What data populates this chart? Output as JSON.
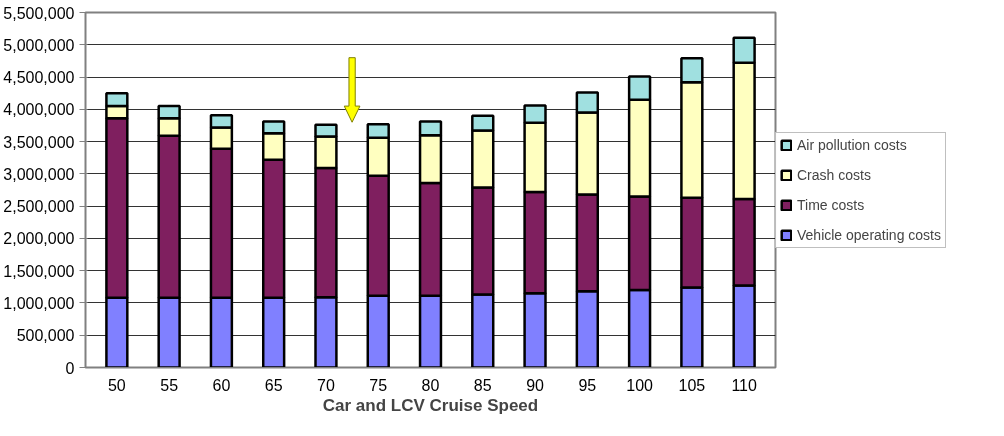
{
  "chart_data": {
    "type": "bar",
    "stacked": true,
    "xlabel": "Car and LCV Cruise Speed",
    "categories": [
      "50",
      "55",
      "60",
      "65",
      "70",
      "75",
      "80",
      "85",
      "90",
      "95",
      "100",
      "105",
      "110"
    ],
    "series": [
      {
        "name": "Vehicle operating costs",
        "color": "#8080ff",
        "values": [
          1080000,
          1080000,
          1080000,
          1080000,
          1090000,
          1110000,
          1110000,
          1130000,
          1150000,
          1180000,
          1200000,
          1240000,
          1270000
        ]
      },
      {
        "name": "Time costs",
        "color": "#7f1f5f",
        "values": [
          2780000,
          2510000,
          2310000,
          2140000,
          2000000,
          1860000,
          1750000,
          1660000,
          1570000,
          1500000,
          1450000,
          1390000,
          1340000
        ]
      },
      {
        "name": "Crash costs",
        "color": "#ffffc0",
        "values": [
          190000,
          270000,
          330000,
          410000,
          490000,
          590000,
          740000,
          880000,
          1070000,
          1270000,
          1500000,
          1790000,
          2110000
        ]
      },
      {
        "name": "Air pollution costs",
        "color": "#a0e0e0",
        "values": [
          200000,
          190000,
          190000,
          180000,
          180000,
          210000,
          210000,
          230000,
          270000,
          310000,
          360000,
          370000,
          390000
        ]
      }
    ],
    "ylim": [
      0,
      5500000
    ],
    "yticks": [
      {
        "value": 0,
        "label": "0"
      },
      {
        "value": 500000,
        "label": "500,000"
      },
      {
        "value": 1000000,
        "label": "1,000,000"
      },
      {
        "value": 1500000,
        "label": "1,500,000"
      },
      {
        "value": 2000000,
        "label": "2,000,000"
      },
      {
        "value": 2500000,
        "label": "2,500,000"
      },
      {
        "value": 3000000,
        "label": "3,000,000"
      },
      {
        "value": 3500000,
        "label": "3,500,000"
      },
      {
        "value": 4000000,
        "label": "4,000,000"
      },
      {
        "value": 4500000,
        "label": "4,500,000"
      },
      {
        "value": 5000000,
        "label": "5,000,000"
      },
      {
        "value": 5500000,
        "label": "5,500,000"
      }
    ],
    "grid": "y",
    "legend": "right"
  }
}
